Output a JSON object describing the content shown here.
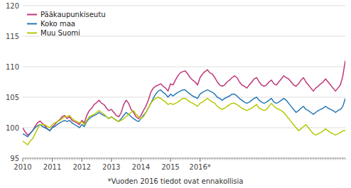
{
  "chart_data": {
    "type": "line",
    "annotations": [
      "*Vuoden 2016 tiedot ovat ennakollisia"
    ],
    "categories": [
      "2010",
      null,
      null,
      null,
      null,
      null,
      null,
      null,
      null,
      null,
      null,
      null,
      "2011",
      null,
      null,
      null,
      null,
      null,
      null,
      null,
      null,
      null,
      null,
      null,
      "2012",
      null,
      null,
      null,
      null,
      null,
      null,
      null,
      null,
      null,
      null,
      null,
      "2013",
      null,
      null,
      null,
      null,
      null,
      null,
      null,
      null,
      null,
      null,
      null,
      "2014",
      null,
      null,
      null,
      null,
      null,
      null,
      null,
      null,
      null,
      null,
      null,
      "2015",
      null,
      null,
      null,
      null,
      null,
      null,
      null,
      null,
      null,
      null,
      null,
      "2016*",
      null,
      null,
      null,
      null,
      null,
      null,
      null,
      null,
      null,
      null,
      null,
      null,
      null,
      null,
      null,
      null,
      null,
      null,
      null,
      null,
      null,
      null,
      null,
      null,
      null,
      null,
      null,
      null,
      null,
      null,
      null,
      null,
      null,
      null,
      null,
      null,
      null,
      null,
      null,
      null,
      null,
      null,
      null,
      null,
      null,
      null,
      null,
      null,
      null,
      null,
      null,
      null,
      null,
      null,
      null,
      null,
      null,
      null,
      null
    ],
    "series": [
      {
        "name": "Pääkaupunkiseutu",
        "color": "#c0357a",
        "values": [
          100.0,
          99.3,
          98.8,
          99.1,
          99.5,
          100.2,
          100.8,
          101.1,
          100.7,
          100.3,
          99.8,
          99.5,
          100.1,
          100.5,
          101.0,
          101.3,
          101.8,
          102.0,
          101.5,
          101.8,
          101.2,
          101.0,
          100.8,
          100.5,
          101.2,
          100.8,
          102.0,
          102.8,
          103.2,
          103.8,
          104.1,
          104.5,
          104.0,
          103.8,
          103.2,
          102.8,
          103.0,
          102.5,
          102.0,
          101.8,
          102.5,
          103.8,
          104.5,
          104.0,
          103.0,
          102.5,
          101.8,
          101.5,
          102.0,
          102.8,
          103.5,
          104.5,
          105.8,
          106.5,
          106.8,
          107.0,
          107.2,
          106.8,
          106.5,
          106.0,
          107.2,
          107.0,
          107.8,
          108.5,
          109.0,
          109.2,
          109.3,
          108.8,
          108.2,
          107.8,
          107.5,
          107.0,
          108.2,
          108.8,
          109.2,
          109.5,
          109.0,
          108.8,
          108.2,
          107.5,
          107.0,
          106.8,
          107.0,
          107.5,
          107.8,
          108.2,
          108.5,
          108.2,
          107.5,
          107.0,
          106.8,
          106.5,
          107.0,
          107.5,
          108.0,
          108.2,
          107.5,
          107.0,
          106.8,
          107.0,
          107.5,
          107.8,
          107.2,
          107.0,
          107.5,
          108.0,
          108.5,
          108.2,
          108.0,
          107.5,
          107.0,
          106.8,
          107.2,
          107.8,
          108.2,
          107.5,
          107.0,
          106.5,
          106.0,
          106.5,
          106.8,
          107.2,
          107.5,
          108.0,
          107.5,
          107.0,
          106.5,
          106.0,
          106.5,
          107.0,
          108.5,
          111.0
        ]
      },
      {
        "name": "Koko maa",
        "color": "#2878b5",
        "values": [
          99.0,
          98.8,
          98.5,
          99.0,
          99.5,
          100.0,
          100.3,
          100.5,
          100.2,
          100.0,
          99.8,
          99.5,
          100.0,
          100.2,
          100.5,
          100.8,
          101.0,
          101.2,
          101.0,
          101.2,
          100.8,
          100.5,
          100.3,
          100.0,
          100.5,
          100.2,
          101.0,
          101.5,
          101.8,
          102.0,
          102.2,
          102.5,
          102.2,
          102.0,
          101.8,
          101.5,
          101.8,
          101.5,
          101.2,
          101.0,
          101.5,
          102.0,
          102.5,
          102.2,
          101.8,
          101.5,
          101.2,
          101.0,
          101.5,
          102.0,
          102.5,
          103.2,
          104.0,
          104.8,
          105.5,
          106.0,
          106.2,
          105.8,
          105.5,
          105.0,
          105.5,
          105.2,
          105.5,
          105.8,
          106.0,
          106.2,
          106.2,
          105.8,
          105.5,
          105.2,
          105.0,
          104.8,
          105.5,
          105.8,
          106.0,
          106.2,
          106.0,
          105.8,
          105.5,
          105.0,
          104.8,
          104.5,
          104.8,
          105.0,
          105.2,
          105.5,
          105.5,
          105.2,
          104.8,
          104.5,
          104.2,
          104.0,
          104.2,
          104.5,
          104.8,
          105.0,
          104.5,
          104.2,
          104.0,
          104.2,
          104.5,
          104.8,
          104.2,
          104.0,
          104.2,
          104.5,
          104.8,
          104.5,
          104.0,
          103.5,
          103.0,
          102.5,
          102.8,
          103.2,
          103.5,
          103.0,
          102.8,
          102.5,
          102.2,
          102.5,
          102.8,
          103.0,
          103.2,
          103.5,
          103.2,
          103.0,
          102.8,
          102.5,
          102.8,
          103.0,
          103.5,
          104.8
        ]
      },
      {
        "name": "Muu Suomi",
        "color": "#b5c800",
        "values": [
          97.8,
          97.5,
          97.2,
          97.8,
          98.2,
          99.0,
          99.8,
          100.5,
          100.5,
          100.5,
          100.2,
          100.0,
          100.5,
          100.8,
          101.0,
          101.2,
          101.5,
          101.8,
          101.8,
          102.0,
          101.5,
          101.2,
          101.0,
          100.8,
          101.0,
          100.5,
          101.2,
          101.8,
          102.0,
          102.2,
          102.5,
          102.8,
          102.5,
          102.2,
          101.8,
          101.5,
          101.8,
          101.5,
          101.2,
          101.0,
          101.2,
          101.5,
          101.8,
          102.2,
          102.5,
          102.8,
          102.2,
          101.8,
          101.5,
          101.8,
          102.5,
          103.2,
          104.0,
          104.5,
          104.8,
          105.0,
          104.8,
          104.5,
          104.2,
          103.8,
          104.0,
          103.8,
          104.0,
          104.2,
          104.5,
          104.8,
          104.8,
          104.5,
          104.2,
          104.0,
          103.8,
          103.5,
          104.0,
          104.2,
          104.5,
          104.8,
          104.5,
          104.2,
          104.0,
          103.5,
          103.2,
          103.0,
          103.2,
          103.5,
          103.8,
          104.0,
          104.0,
          103.8,
          103.5,
          103.2,
          103.0,
          102.8,
          103.0,
          103.2,
          103.5,
          103.8,
          103.2,
          103.0,
          102.8,
          103.0,
          103.5,
          104.0,
          103.5,
          103.2,
          103.0,
          102.8,
          102.5,
          102.0,
          101.5,
          101.0,
          100.5,
          100.0,
          99.5,
          99.8,
          100.2,
          100.5,
          100.0,
          99.5,
          99.0,
          98.8,
          99.0,
          99.2,
          99.5,
          99.8,
          99.5,
          99.2,
          99.0,
          98.8,
          99.0,
          99.2,
          99.5,
          99.5
        ]
      }
    ],
    "ylim": [
      95,
      120
    ],
    "yticks": [
      95,
      100,
      105,
      110,
      115,
      120
    ],
    "grid": true,
    "legend": "upper-left"
  }
}
